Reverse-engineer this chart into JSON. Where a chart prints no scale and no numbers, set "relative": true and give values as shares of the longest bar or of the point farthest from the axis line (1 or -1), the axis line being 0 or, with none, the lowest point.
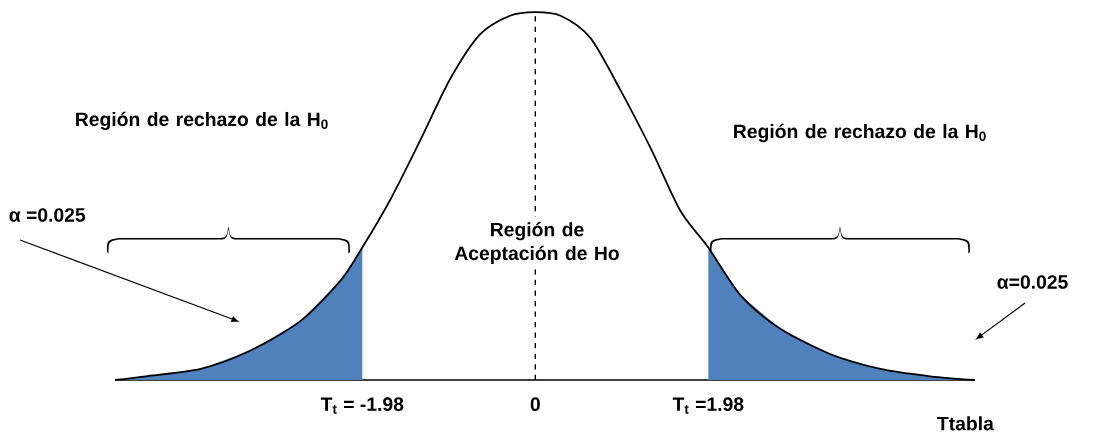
{
  "chart_data": {
    "type": "line",
    "relative": true,
    "xlabel": "Ttabla",
    "tick_labels": "x",
    "xlim": [
      -4.81,
      5.03
    ],
    "xticks": [
      {
        "value": -1.98,
        "label": "T$_{t}$ = -1.98"
      },
      {
        "value": 0,
        "label": "0"
      },
      {
        "value": 1.98,
        "label": "T$_{t}$ =1.98"
      }
    ],
    "series": [
      {
        "type": "area",
        "color": "#4f81bd",
        "x": [
          -4.81,
          -4.46,
          -3.83,
          -3.26,
          -2.69,
          -2.23,
          -1.98
        ],
        "values": [
          0,
          0.01,
          0.03,
          0.08,
          0.16,
          0.27,
          0.36
        ]
      },
      {
        "type": "area",
        "color": "#4f81bd",
        "x": [
          1.98,
          2.35,
          2.8,
          3.38,
          3.95,
          4.52,
          5.03
        ],
        "values": [
          0.36,
          0.23,
          0.14,
          0.07,
          0.03,
          0.01,
          0
        ]
      },
      {
        "color": "#000000",
        "x": [
          -4.81,
          -4.46,
          -3.83,
          -3.26,
          -2.69,
          -2.23,
          -1.98,
          -1.66,
          -1.32,
          -0.97,
          -0.63,
          -0.29,
          0,
          0.29,
          0.63,
          0.97,
          1.32,
          1.66,
          1.98,
          2.35,
          2.8,
          3.38,
          3.95,
          4.52,
          5.03
        ],
        "values": [
          0,
          0.01,
          0.03,
          0.08,
          0.16,
          0.27,
          0.36,
          0.49,
          0.65,
          0.82,
          0.94,
          0.99,
          1,
          0.99,
          0.93,
          0.79,
          0.63,
          0.46,
          0.36,
          0.23,
          0.14,
          0.07,
          0.03,
          0.01,
          0
        ]
      }
    ],
    "ref_lines": [
      {
        "axis": "x",
        "value": 0,
        "line_style": "dashed"
      }
    ],
    "annotations": [
      "Región de rechazo de la H$_{0}$",
      "Región de Aceptación de Ho",
      "Región de rechazo de la H$_{0}$",
      "α =0.025",
      "α=0.025"
    ]
  }
}
